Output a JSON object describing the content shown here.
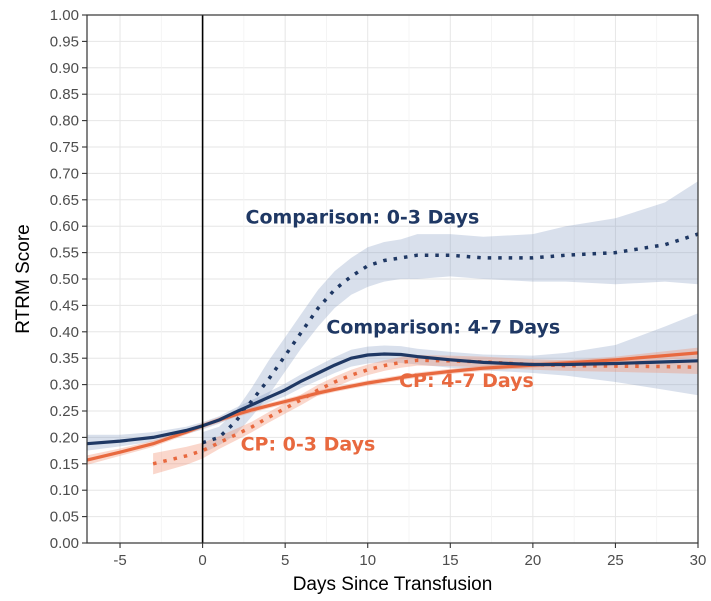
{
  "chart_data": {
    "type": "line",
    "title": "",
    "xlabel": "Days Since Transfusion",
    "ylabel": "RTRM Score",
    "xlim": [
      -7,
      30
    ],
    "ylim": [
      0,
      1
    ],
    "x_ticks": [
      -5,
      0,
      5,
      10,
      15,
      20,
      25,
      30
    ],
    "x_tick_labels": [
      "-5",
      "0",
      "5",
      "10",
      "15",
      "20",
      "25",
      "30"
    ],
    "y_ticks": [
      0,
      0.05,
      0.1,
      0.15,
      0.2,
      0.25,
      0.3,
      0.35,
      0.4,
      0.45,
      0.5,
      0.55,
      0.6,
      0.65,
      0.7,
      0.75,
      0.8,
      0.85,
      0.9,
      0.95,
      1.0
    ],
    "y_tick_labels": [
      "0.00",
      "0.05",
      "0.10",
      "0.15",
      "0.20",
      "0.25",
      "0.30",
      "0.35",
      "0.40",
      "0.45",
      "0.50",
      "0.55",
      "0.60",
      "0.65",
      "0.70",
      "0.75",
      "0.80",
      "0.85",
      "0.90",
      "0.95",
      "1.00"
    ],
    "grid": true,
    "vline_x": 0,
    "series": [
      {
        "name": "Comparison: 0-3 Days",
        "color": "#1f3864",
        "style": "dotted",
        "x": [
          0,
          1,
          2,
          3,
          4,
          5,
          6,
          7,
          8,
          9,
          10,
          11,
          12,
          13,
          15,
          17,
          20,
          22,
          25,
          28,
          30
        ],
        "y": [
          0.19,
          0.2,
          0.23,
          0.27,
          0.31,
          0.355,
          0.4,
          0.445,
          0.48,
          0.505,
          0.525,
          0.535,
          0.54,
          0.545,
          0.545,
          0.54,
          0.54,
          0.545,
          0.55,
          0.565,
          0.585
        ],
        "ci_lower": [
          0.17,
          0.185,
          0.205,
          0.24,
          0.28,
          0.325,
          0.37,
          0.41,
          0.445,
          0.47,
          0.485,
          0.495,
          0.5,
          0.5,
          0.505,
          0.5,
          0.495,
          0.495,
          0.49,
          0.495,
          0.49
        ],
        "ci_upper": [
          0.21,
          0.22,
          0.25,
          0.295,
          0.345,
          0.39,
          0.435,
          0.48,
          0.515,
          0.54,
          0.56,
          0.57,
          0.575,
          0.585,
          0.585,
          0.58,
          0.585,
          0.6,
          0.615,
          0.645,
          0.685
        ]
      },
      {
        "name": "Comparison: 4-7 Days",
        "color": "#1f3864",
        "style": "solid",
        "x": [
          -7,
          -5,
          -3,
          -1,
          0,
          1,
          2,
          3,
          4,
          5,
          6,
          7,
          8,
          9,
          10,
          11,
          12,
          13,
          15,
          17,
          20,
          22,
          25,
          28,
          30
        ],
        "y": [
          0.188,
          0.193,
          0.2,
          0.213,
          0.222,
          0.233,
          0.248,
          0.262,
          0.276,
          0.29,
          0.307,
          0.322,
          0.337,
          0.35,
          0.356,
          0.358,
          0.357,
          0.353,
          0.347,
          0.342,
          0.338,
          0.338,
          0.34,
          0.343,
          0.345
        ],
        "ci_lower": [
          0.175,
          0.183,
          0.192,
          0.206,
          0.215,
          0.226,
          0.24,
          0.253,
          0.266,
          0.278,
          0.294,
          0.308,
          0.322,
          0.334,
          0.34,
          0.342,
          0.341,
          0.338,
          0.332,
          0.327,
          0.322,
          0.317,
          0.305,
          0.29,
          0.28
        ],
        "ci_upper": [
          0.205,
          0.205,
          0.21,
          0.22,
          0.229,
          0.24,
          0.256,
          0.271,
          0.286,
          0.302,
          0.32,
          0.336,
          0.352,
          0.366,
          0.372,
          0.374,
          0.373,
          0.368,
          0.362,
          0.357,
          0.355,
          0.36,
          0.375,
          0.41,
          0.435
        ]
      },
      {
        "name": "CP: 0-3 Days",
        "color": "#e8693f",
        "style": "dotted",
        "x": [
          -3,
          -1,
          0,
          1,
          2,
          3,
          4,
          5,
          6,
          7,
          8,
          9,
          10,
          11,
          12,
          13,
          15,
          17,
          20,
          22,
          25,
          28,
          30
        ],
        "y": [
          0.15,
          0.165,
          0.175,
          0.19,
          0.205,
          0.22,
          0.238,
          0.255,
          0.272,
          0.29,
          0.305,
          0.318,
          0.328,
          0.336,
          0.342,
          0.346,
          0.345,
          0.343,
          0.338,
          0.336,
          0.335,
          0.334,
          0.333
        ],
        "ci_lower": [
          0.13,
          0.148,
          0.16,
          0.178,
          0.194,
          0.21,
          0.228,
          0.245,
          0.262,
          0.28,
          0.295,
          0.308,
          0.318,
          0.326,
          0.332,
          0.336,
          0.335,
          0.333,
          0.328,
          0.326,
          0.324,
          0.322,
          0.32
        ],
        "ci_upper": [
          0.17,
          0.182,
          0.19,
          0.202,
          0.216,
          0.23,
          0.248,
          0.265,
          0.282,
          0.3,
          0.315,
          0.328,
          0.338,
          0.346,
          0.352,
          0.356,
          0.355,
          0.353,
          0.348,
          0.346,
          0.346,
          0.346,
          0.346
        ]
      },
      {
        "name": "CP: 4-7 Days",
        "color": "#e8693f",
        "style": "solid",
        "x": [
          -7,
          -5,
          -3,
          -1,
          0,
          1,
          2,
          3,
          4,
          5,
          6,
          7,
          8,
          9,
          10,
          11,
          12,
          13,
          15,
          17,
          20,
          22,
          25,
          28,
          30
        ],
        "y": [
          0.157,
          0.172,
          0.188,
          0.21,
          0.222,
          0.233,
          0.243,
          0.252,
          0.26,
          0.268,
          0.276,
          0.284,
          0.291,
          0.297,
          0.303,
          0.308,
          0.313,
          0.318,
          0.325,
          0.331,
          0.337,
          0.341,
          0.347,
          0.355,
          0.36
        ],
        "ci_lower": [
          0.148,
          0.165,
          0.182,
          0.205,
          0.217,
          0.228,
          0.238,
          0.247,
          0.255,
          0.263,
          0.271,
          0.279,
          0.286,
          0.292,
          0.298,
          0.303,
          0.308,
          0.313,
          0.32,
          0.326,
          0.332,
          0.336,
          0.341,
          0.347,
          0.35
        ],
        "ci_upper": [
          0.166,
          0.179,
          0.194,
          0.215,
          0.227,
          0.238,
          0.248,
          0.257,
          0.265,
          0.273,
          0.281,
          0.289,
          0.296,
          0.302,
          0.308,
          0.313,
          0.318,
          0.323,
          0.33,
          0.336,
          0.342,
          0.346,
          0.353,
          0.363,
          0.37
        ]
      }
    ],
    "annotations": [
      {
        "text": "Comparison: 0-3 Days",
        "color": "#1f3864"
      },
      {
        "text": "Comparison: 4-7 Days",
        "color": "#1f3864"
      },
      {
        "text": "CP: 4-7 Days",
        "color": "#e8693f"
      },
      {
        "text": "CP: 0-3 Days",
        "color": "#e8693f"
      }
    ]
  }
}
